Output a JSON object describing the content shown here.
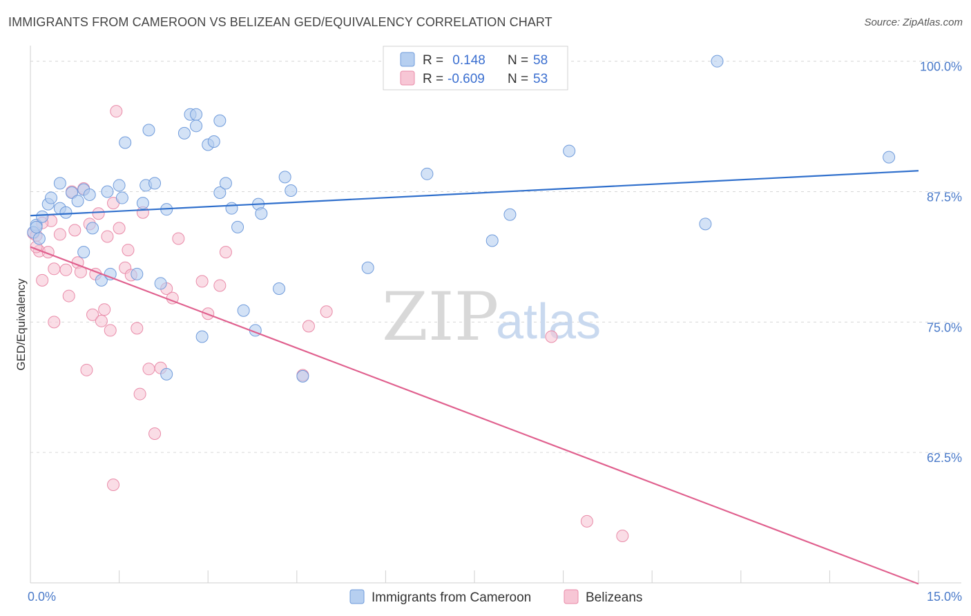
{
  "title": "IMMIGRANTS FROM CAMEROON VS BELIZEAN GED/EQUIVALENCY CORRELATION CHART",
  "source": "Source: ZipAtlas.com",
  "watermark": {
    "zip": "ZIP",
    "atlas": "atlas"
  },
  "colors": {
    "blue_fill": "#b6cff0",
    "blue_stroke": "#6f9bdb",
    "blue_line": "#2f6fcc",
    "pink_fill": "#f7c6d5",
    "pink_stroke": "#e98aa8",
    "pink_line": "#e0608e",
    "grid": "#d6d6d6",
    "axis_text": "#4a7ac9"
  },
  "legend": {
    "rows": [
      {
        "r_label": "R =",
        "r_value": " 0.148",
        "n_label": "N =",
        "n_value": "58"
      },
      {
        "r_label": "R =",
        "r_value": "-0.609",
        "n_label": "N =",
        "n_value": "53"
      }
    ]
  },
  "bottom_legend": [
    "Immigrants from Cameroon",
    "Belizeans"
  ],
  "chart_data": {
    "type": "scatter",
    "xlabel": "",
    "ylabel": "GED/Equivalency",
    "xlim": [
      0,
      15
    ],
    "ylim": [
      50,
      101.5
    ],
    "x_tick_labels": [
      {
        "value": 0,
        "label": "0.0%"
      },
      {
        "value": 15,
        "label": "15.0%"
      }
    ],
    "y_tick_labels": [
      {
        "value": 100,
        "label": "100.0%"
      },
      {
        "value": 87.5,
        "label": "87.5%"
      },
      {
        "value": 75,
        "label": "75.0%"
      },
      {
        "value": 62.5,
        "label": "62.5%"
      }
    ],
    "grid": true,
    "series": [
      {
        "name": "Immigrants from Cameroon",
        "color": "blue",
        "trend": {
          "x": [
            0,
            15
          ],
          "y": [
            85.2,
            89.5
          ]
        },
        "points": [
          [
            0.1,
            84.3
          ],
          [
            0.2,
            85.1
          ],
          [
            0.3,
            86.3
          ],
          [
            0.35,
            86.9
          ],
          [
            0.5,
            85.9
          ],
          [
            0.5,
            88.3
          ],
          [
            0.6,
            85.5
          ],
          [
            0.7,
            87.4
          ],
          [
            0.8,
            86.6
          ],
          [
            0.9,
            87.7
          ],
          [
            1.0,
            87.2
          ],
          [
            1.05,
            84.0
          ],
          [
            1.3,
            87.5
          ],
          [
            1.5,
            88.1
          ],
          [
            1.55,
            86.9
          ],
          [
            1.6,
            92.2
          ],
          [
            0.9,
            81.7
          ],
          [
            1.2,
            79.0
          ],
          [
            1.35,
            79.6
          ],
          [
            1.8,
            79.6
          ],
          [
            1.9,
            86.4
          ],
          [
            1.95,
            88.1
          ],
          [
            2.0,
            93.4
          ],
          [
            2.1,
            88.3
          ],
          [
            2.2,
            78.7
          ],
          [
            2.3,
            85.8
          ],
          [
            2.3,
            70.0
          ],
          [
            2.6,
            93.1
          ],
          [
            2.7,
            94.9
          ],
          [
            2.8,
            94.9
          ],
          [
            2.8,
            93.8
          ],
          [
            2.9,
            73.6
          ],
          [
            3.0,
            92.0
          ],
          [
            3.1,
            92.3
          ],
          [
            3.2,
            94.3
          ],
          [
            3.2,
            87.4
          ],
          [
            3.3,
            88.3
          ],
          [
            3.4,
            85.9
          ],
          [
            3.5,
            84.1
          ],
          [
            3.6,
            76.1
          ],
          [
            3.8,
            74.2
          ],
          [
            3.85,
            86.3
          ],
          [
            3.9,
            85.4
          ],
          [
            4.2,
            78.2
          ],
          [
            4.3,
            88.9
          ],
          [
            4.4,
            87.6
          ],
          [
            4.6,
            69.8
          ],
          [
            5.7,
            80.2
          ],
          [
            6.7,
            89.2
          ],
          [
            7.8,
            82.8
          ],
          [
            8.1,
            85.3
          ],
          [
            9.1,
            91.4
          ],
          [
            11.4,
            84.4
          ],
          [
            11.6,
            100.0
          ],
          [
            14.5,
            90.8
          ],
          [
            0.05,
            83.6
          ],
          [
            0.1,
            84.1
          ],
          [
            0.15,
            83.0
          ]
        ]
      },
      {
        "name": "Belizeans",
        "color": "pink",
        "trend": {
          "x": [
            0,
            15
          ],
          "y": [
            82.2,
            49.9
          ]
        },
        "points": [
          [
            0.05,
            83.5
          ],
          [
            0.1,
            83.3
          ],
          [
            0.15,
            81.8
          ],
          [
            0.2,
            79.0
          ],
          [
            0.3,
            81.7
          ],
          [
            0.35,
            84.7
          ],
          [
            0.4,
            80.1
          ],
          [
            0.4,
            75.0
          ],
          [
            0.5,
            83.4
          ],
          [
            0.6,
            80.0
          ],
          [
            0.65,
            77.5
          ],
          [
            0.7,
            87.5
          ],
          [
            0.75,
            83.8
          ],
          [
            0.8,
            80.7
          ],
          [
            0.85,
            79.8
          ],
          [
            0.9,
            87.8
          ],
          [
            0.95,
            70.4
          ],
          [
            1.0,
            84.4
          ],
          [
            1.05,
            75.7
          ],
          [
            1.1,
            79.6
          ],
          [
            1.15,
            85.4
          ],
          [
            1.2,
            75.1
          ],
          [
            1.25,
            76.2
          ],
          [
            1.3,
            83.2
          ],
          [
            1.35,
            74.2
          ],
          [
            1.4,
            86.4
          ],
          [
            1.45,
            95.2
          ],
          [
            1.5,
            84.0
          ],
          [
            1.6,
            80.2
          ],
          [
            1.65,
            81.9
          ],
          [
            1.7,
            79.5
          ],
          [
            1.8,
            74.4
          ],
          [
            1.85,
            68.1
          ],
          [
            1.9,
            85.5
          ],
          [
            2.0,
            70.5
          ],
          [
            2.1,
            64.3
          ],
          [
            2.2,
            70.6
          ],
          [
            2.3,
            78.2
          ],
          [
            2.4,
            77.3
          ],
          [
            2.5,
            83.0
          ],
          [
            2.9,
            78.9
          ],
          [
            3.0,
            75.8
          ],
          [
            3.2,
            78.5
          ],
          [
            3.3,
            81.7
          ],
          [
            4.6,
            69.9
          ],
          [
            4.7,
            74.6
          ],
          [
            5.0,
            76.0
          ],
          [
            8.8,
            73.6
          ],
          [
            9.4,
            55.9
          ],
          [
            10.0,
            54.5
          ],
          [
            1.4,
            59.4
          ],
          [
            0.1,
            82.2
          ],
          [
            0.2,
            84.5
          ]
        ]
      }
    ]
  }
}
